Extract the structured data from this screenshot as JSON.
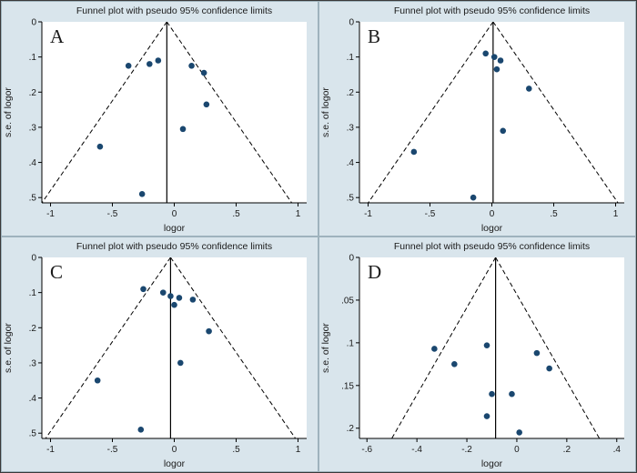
{
  "figure": {
    "description": "2x2 grid of meta-analysis funnel plots",
    "panel_labels": [
      "A",
      "B",
      "C",
      "D"
    ]
  },
  "style": {
    "background": "#d9e5ec",
    "plot_background": "#ffffff",
    "marker_color": "#1a476f",
    "line_color": "#000000",
    "panel_border": "#9fb3bd",
    "figure_border": "#3a3a3a",
    "text_color": "#1a1a1a"
  },
  "chart_data": [
    {
      "type": "scatter",
      "panel_label": "A",
      "title": "Funnel plot with pseudo 95% confidence limits",
      "xlabel": "logor",
      "ylabel": "s.e. of logor",
      "xlim": [
        -1.07,
        1.07
      ],
      "ylim": [
        0,
        0.515
      ],
      "y_inverted": true,
      "xticks": [
        -1,
        -0.5,
        0,
        0.5,
        1
      ],
      "xtick_labels": [
        "-1",
        "-.5",
        "0",
        ".5",
        "1"
      ],
      "yticks": [
        0,
        0.1,
        0.2,
        0.3,
        0.4,
        0.5
      ],
      "ytick_labels": [
        "0",
        ".1",
        ".2",
        ".3",
        ".4",
        ".5"
      ],
      "center": -0.06,
      "ci_multiplier": 1.96,
      "grid": false,
      "legend": null,
      "points": [
        [
          -0.37,
          0.125
        ],
        [
          -0.2,
          0.12
        ],
        [
          -0.13,
          0.11
        ],
        [
          0.14,
          0.125
        ],
        [
          0.24,
          0.145
        ],
        [
          0.26,
          0.235
        ],
        [
          0.07,
          0.305
        ],
        [
          -0.6,
          0.355
        ],
        [
          -0.26,
          0.49
        ]
      ]
    },
    {
      "type": "scatter",
      "panel_label": "B",
      "title": "Funnel plot with pseudo 95% confidence limits",
      "xlabel": "logor",
      "ylabel": "s.e. of logor",
      "xlim": [
        -1.07,
        1.07
      ],
      "ylim": [
        0,
        0.515
      ],
      "y_inverted": true,
      "xticks": [
        -1,
        -0.5,
        0,
        0.5,
        1
      ],
      "xtick_labels": [
        "-1",
        "-.5",
        "0",
        ".5",
        "1"
      ],
      "yticks": [
        0,
        0.1,
        0.2,
        0.3,
        0.4,
        0.5
      ],
      "ytick_labels": [
        "0",
        ".1",
        ".2",
        ".3",
        ".4",
        ".5"
      ],
      "center": 0.01,
      "ci_multiplier": 1.96,
      "grid": false,
      "legend": null,
      "points": [
        [
          -0.05,
          0.09
        ],
        [
          0.02,
          0.1
        ],
        [
          0.07,
          0.11
        ],
        [
          0.04,
          0.135
        ],
        [
          0.3,
          0.19
        ],
        [
          0.09,
          0.31
        ],
        [
          -0.63,
          0.37
        ],
        [
          -0.15,
          0.5
        ]
      ]
    },
    {
      "type": "scatter",
      "panel_label": "C",
      "title": "Funnel plot with pseudo 95% confidence limits",
      "xlabel": "logor",
      "ylabel": "s.e. of logor",
      "xlim": [
        -1.07,
        1.07
      ],
      "ylim": [
        0,
        0.515
      ],
      "y_inverted": true,
      "xticks": [
        -1,
        -0.5,
        0,
        0.5,
        1
      ],
      "xtick_labels": [
        "-1",
        "-.5",
        "0",
        ".5",
        "1"
      ],
      "yticks": [
        0,
        0.1,
        0.2,
        0.3,
        0.4,
        0.5
      ],
      "ytick_labels": [
        "0",
        ".1",
        ".2",
        ".3",
        ".4",
        ".5"
      ],
      "center": -0.03,
      "ci_multiplier": 1.96,
      "grid": false,
      "legend": null,
      "points": [
        [
          -0.25,
          0.09
        ],
        [
          -0.09,
          0.1
        ],
        [
          -0.03,
          0.11
        ],
        [
          0.04,
          0.115
        ],
        [
          0.15,
          0.12
        ],
        [
          0.0,
          0.135
        ],
        [
          0.28,
          0.21
        ],
        [
          0.05,
          0.3
        ],
        [
          -0.62,
          0.35
        ],
        [
          -0.27,
          0.49
        ]
      ]
    },
    {
      "type": "scatter",
      "panel_label": "D",
      "title": "Funnel plot with pseudo 95% confidence limits",
      "xlabel": "logor",
      "ylabel": "s.e. of logor",
      "xlim": [
        -0.63,
        0.43
      ],
      "ylim": [
        0,
        0.212
      ],
      "y_inverted": true,
      "xticks": [
        -0.6,
        -0.4,
        -0.2,
        0,
        0.2,
        0.4
      ],
      "xtick_labels": [
        "-.6",
        "-.4",
        "-.2",
        "0",
        ".2",
        ".4"
      ],
      "yticks": [
        0,
        0.05,
        0.1,
        0.15,
        0.2
      ],
      "ytick_labels": [
        "0",
        ".05",
        ".1",
        ".15",
        ".2"
      ],
      "center": -0.085,
      "ci_multiplier": 1.96,
      "grid": false,
      "legend": null,
      "points": [
        [
          -0.33,
          0.107
        ],
        [
          -0.12,
          0.103
        ],
        [
          -0.25,
          0.125
        ],
        [
          0.08,
          0.112
        ],
        [
          0.13,
          0.13
        ],
        [
          -0.1,
          0.16
        ],
        [
          -0.02,
          0.16
        ],
        [
          -0.12,
          0.186
        ],
        [
          0.01,
          0.205
        ]
      ]
    }
  ]
}
